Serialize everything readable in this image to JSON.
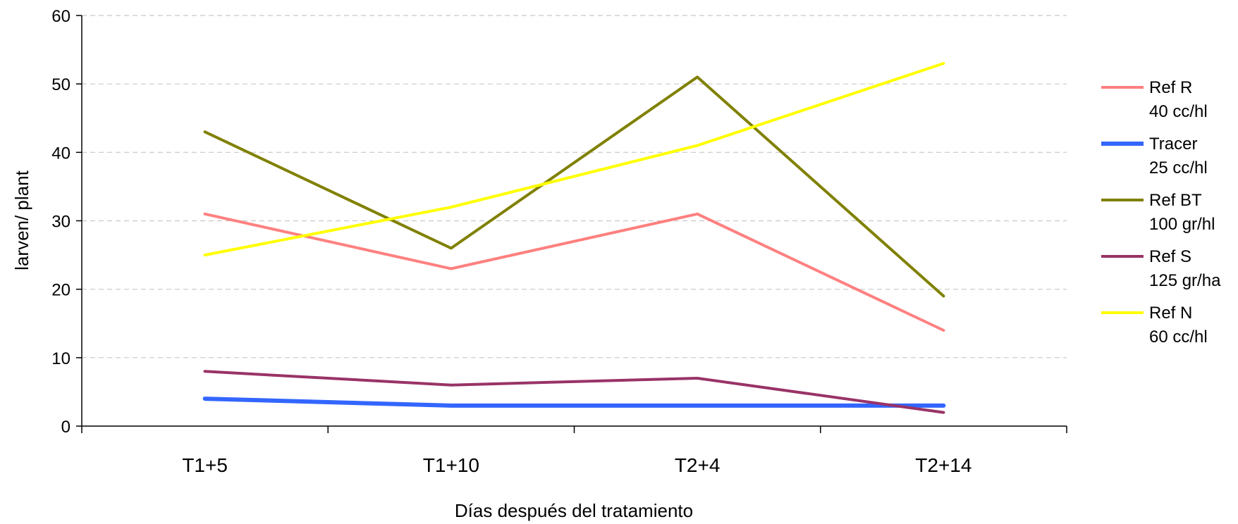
{
  "chart_data": {
    "type": "line",
    "title": "",
    "xlabel": "Días después del tratamiento",
    "ylabel": "larven/ plant",
    "categories": [
      "T1+5",
      "T1+10",
      "T2+4",
      "T2+14"
    ],
    "ylim": [
      0,
      60
    ],
    "yticks": [
      0,
      10,
      20,
      30,
      40,
      50,
      60
    ],
    "grid": "horizontal dashed",
    "legend_position": "right",
    "series": [
      {
        "name": "Ref R",
        "name_line2": "40 cc/hl",
        "color": "#ff8080",
        "values": [
          31,
          23,
          31,
          14
        ]
      },
      {
        "name": "Tracer",
        "name_line2": "25 cc/hl",
        "color": "#3366ff",
        "values": [
          4,
          3,
          3,
          3
        ]
      },
      {
        "name": "Ref BT",
        "name_line2": "100 gr/hl",
        "color": "#808000",
        "values": [
          43,
          26,
          51,
          19
        ]
      },
      {
        "name": "Ref S",
        "name_line2": "125 gr/ha",
        "color": "#993366",
        "values": [
          8,
          6,
          7,
          2
        ]
      },
      {
        "name": "Ref N",
        "name_line2": "60 cc/hl",
        "color": "#ffff00",
        "values": [
          25,
          32,
          41,
          53
        ]
      }
    ]
  }
}
